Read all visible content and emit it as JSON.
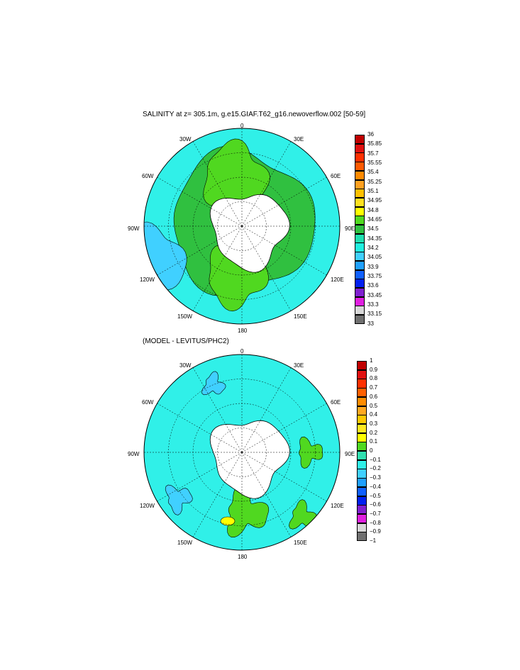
{
  "panel1": {
    "title": "SALINITY at z= 305.1m, g.e15.GIAF.T62_g16.newoverflow.002 [50-59]",
    "labels": {
      "top": "0",
      "bottom": "180",
      "left": "90W",
      "right": "90E",
      "w30": "30W",
      "w60": "60W",
      "w120": "120W",
      "w150": "150W",
      "e30": "30E",
      "e60": "60E",
      "e120": "120E",
      "e150": "150E"
    },
    "colorbar": {
      "ticks": [
        "36",
        "35.85",
        "35.7",
        "35.55",
        "35.4",
        "35.25",
        "35.1",
        "34.95",
        "34.8",
        "34.65",
        "34.5",
        "34.35",
        "34.2",
        "34.05",
        "33.9",
        "33.75",
        "33.6",
        "33.45",
        "33.3",
        "33.15",
        "33"
      ],
      "colors": [
        "#c00000",
        "#e01010",
        "#ff3000",
        "#ff5a00",
        "#ff8a00",
        "#ffa020",
        "#ffc000",
        "#ffe020",
        "#ffff00",
        "#50d820",
        "#30c040",
        "#20e0b0",
        "#20f0e0",
        "#40d0ff",
        "#20a0ff",
        "#1060ff",
        "#0020f0",
        "#8020d0",
        "#e020e0",
        "#d8d8d8",
        "#707070"
      ]
    }
  },
  "panel2": {
    "title": "(MODEL - LEVITUS/PHC2)",
    "labels": {
      "top": "0",
      "bottom": "180",
      "left": "90W",
      "right": "90E",
      "w30": "30W",
      "w60": "60W",
      "w120": "120W",
      "w150": "150W",
      "e30": "30E",
      "e60": "60E",
      "e120": "120E",
      "e150": "150E"
    },
    "colorbar": {
      "ticks": [
        "1",
        "0.9",
        "0.8",
        "0.7",
        "0.6",
        "0.5",
        "0.4",
        "0.3",
        "0.2",
        "0.1",
        "0",
        "−0.1",
        "−0.2",
        "−0.3",
        "−0.4",
        "−0.5",
        "−0.6",
        "−0.7",
        "−0.8",
        "−0.9",
        "−1"
      ],
      "colors": [
        "#c00000",
        "#e01010",
        "#ff3000",
        "#ff6000",
        "#ff8c00",
        "#ffa820",
        "#ffc800",
        "#ffe820",
        "#ffff00",
        "#50d820",
        "#30e0b0",
        "#30f0e8",
        "#40d0ff",
        "#20a0ff",
        "#1060ff",
        "#0020f0",
        "#8020d0",
        "#e020e0",
        "#d8d8d8",
        "#707070"
      ]
    }
  }
}
